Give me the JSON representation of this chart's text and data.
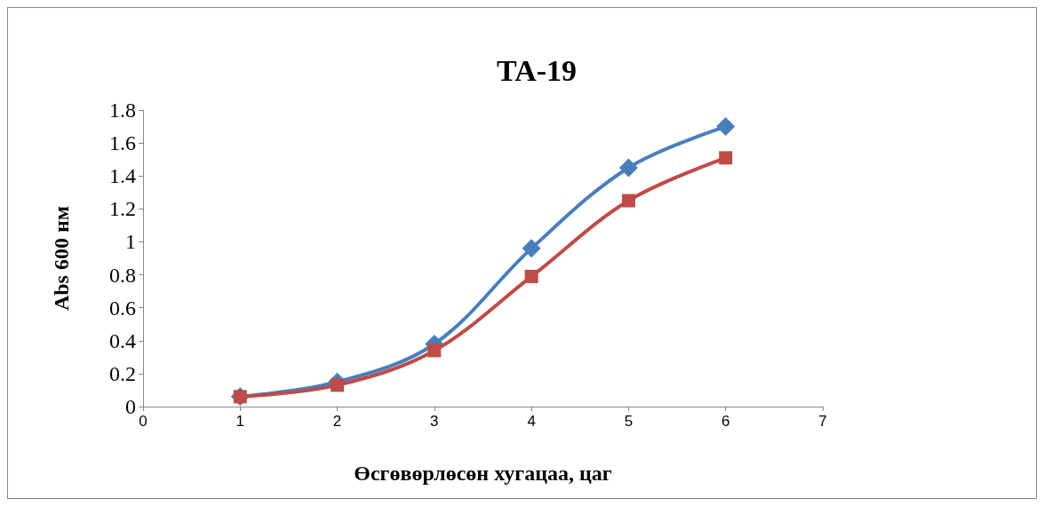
{
  "chart_data": {
    "type": "line",
    "title": "TA-19",
    "xlabel": "Өсгөвөрлөсөн хугацаа, цаг",
    "ylabel": "Abs 600 нм",
    "x": [
      1,
      2,
      3,
      4,
      5,
      6
    ],
    "series": [
      {
        "color": "#4a7ebb",
        "marker": "diamond",
        "values": [
          0.06,
          0.15,
          0.38,
          0.96,
          1.45,
          1.7
        ]
      },
      {
        "color": "#be4b48",
        "marker": "square",
        "values": [
          0.06,
          0.13,
          0.34,
          0.79,
          1.25,
          1.51
        ]
      }
    ],
    "xlim": [
      0,
      7
    ],
    "xticks": [
      0,
      1,
      2,
      3,
      4,
      5,
      6,
      7
    ],
    "ylim": [
      0,
      1.8
    ],
    "yticks": [
      0,
      0.2,
      0.4,
      0.6,
      0.8,
      1,
      1.2,
      1.4,
      1.6,
      1.8
    ],
    "grid": false,
    "line_style": "solid"
  }
}
